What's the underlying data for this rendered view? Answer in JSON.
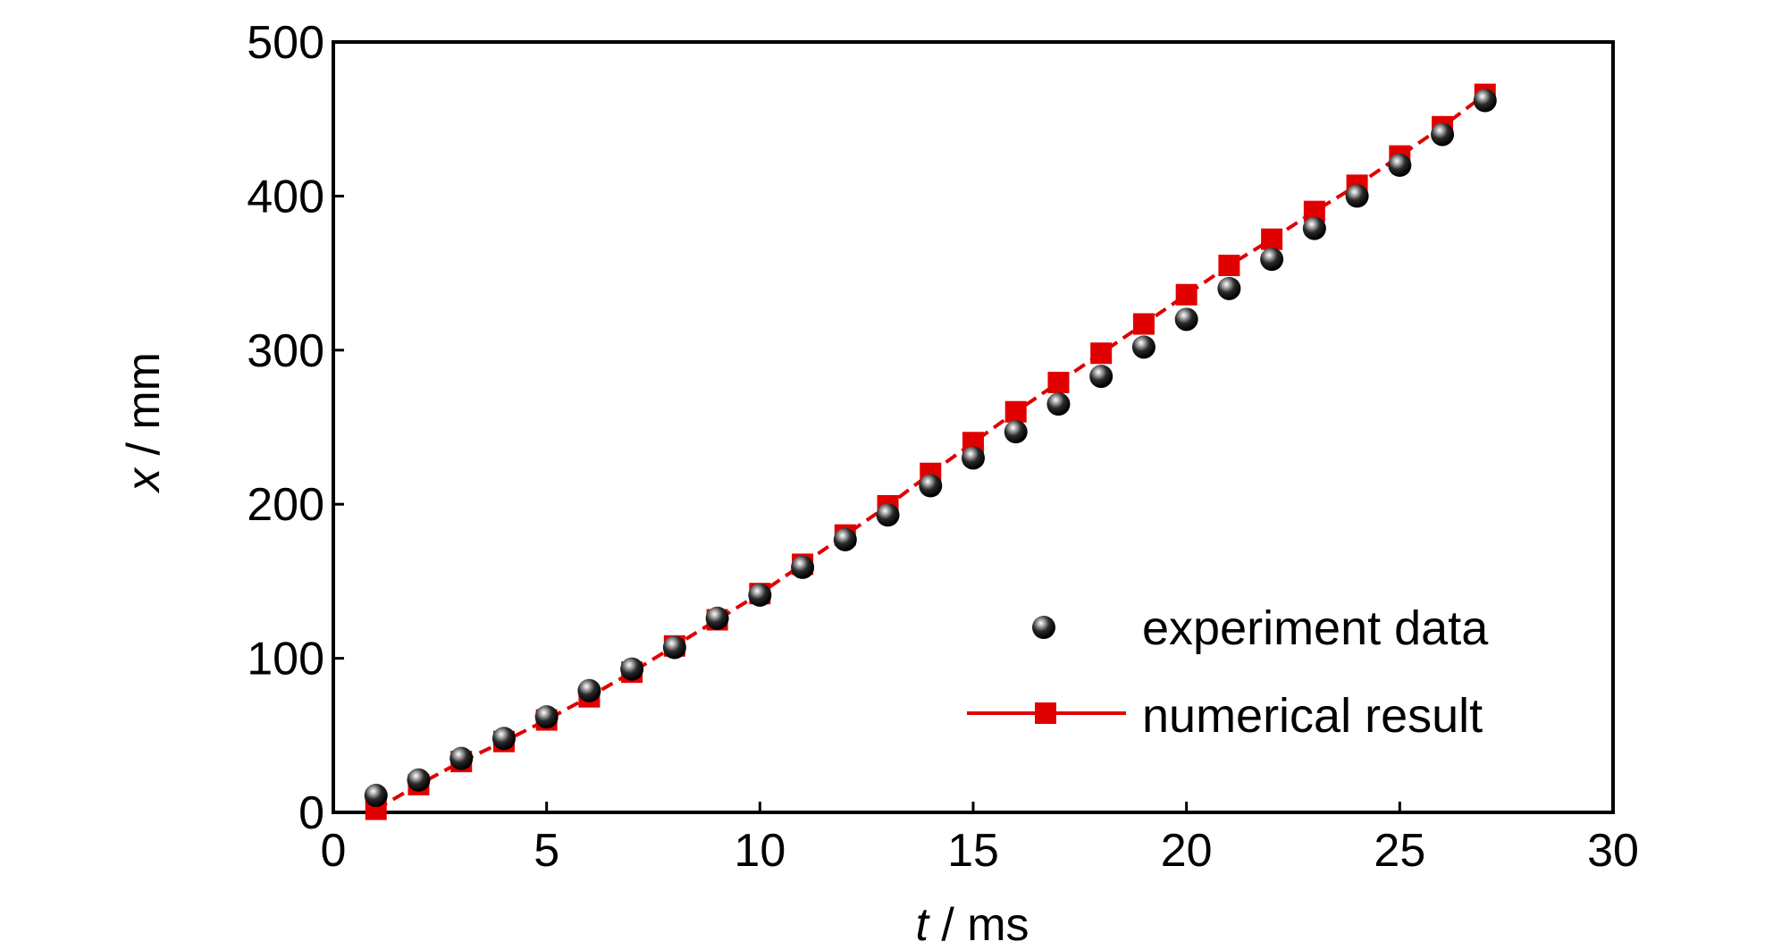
{
  "chart_data": {
    "type": "scatter",
    "xlabel_var": "t",
    "xlabel_unit": " / ms",
    "ylabel_var": "x",
    "ylabel_unit": " / mm",
    "xlim": [
      0,
      30
    ],
    "ylim": [
      0,
      500
    ],
    "xticks": [
      0,
      5,
      10,
      15,
      20,
      25,
      30
    ],
    "yticks": [
      0,
      100,
      200,
      300,
      400,
      500
    ],
    "grid": false,
    "legend_position": "bottom-right",
    "series": [
      {
        "name": "experiment data",
        "style": "markers",
        "marker": "sphere",
        "color": "#000000",
        "x": [
          1,
          2,
          3,
          4,
          5,
          6,
          7,
          8,
          9,
          10,
          11,
          12,
          13,
          14,
          15,
          16,
          17,
          18,
          19,
          20,
          21,
          22,
          23,
          24,
          25,
          26,
          27
        ],
        "y": [
          11,
          21,
          35,
          48,
          62,
          79,
          93,
          107,
          126,
          141,
          159,
          177,
          193,
          212,
          230,
          247,
          265,
          283,
          302,
          320,
          340,
          359,
          379,
          400,
          420,
          440,
          462
        ]
      },
      {
        "name": "numerical result",
        "style": "dashed-line-markers",
        "marker": "square",
        "color": "#e00000",
        "x": [
          1,
          2,
          3,
          4,
          5,
          6,
          7,
          8,
          9,
          10,
          11,
          12,
          13,
          14,
          15,
          16,
          17,
          18,
          19,
          20,
          21,
          22,
          23,
          24,
          25,
          26,
          27
        ],
        "y": [
          2,
          18,
          33,
          46,
          60,
          75,
          91,
          108,
          125,
          142,
          161,
          180,
          199,
          220,
          240,
          260,
          279,
          298,
          317,
          336,
          355,
          372,
          390,
          407,
          426,
          445,
          466
        ]
      }
    ]
  }
}
